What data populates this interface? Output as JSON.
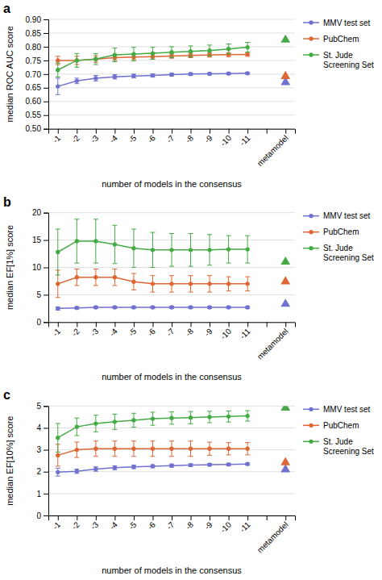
{
  "chart_data": [
    {
      "type": "line",
      "title": "a",
      "x_label": "number of models in the consensus",
      "y_label": "median ROC AUC score",
      "categories": [
        "-1",
        "-2",
        "-3",
        "-4",
        "-5",
        "-6",
        "-7",
        "-8",
        "-9",
        "-10",
        "-11",
        null,
        "metamodel"
      ],
      "ylim": [
        0.5,
        0.9
      ],
      "yticks": [
        {
          "value": 0.5,
          "label": "0.50"
        },
        {
          "value": 0.55,
          "label": "0.55"
        },
        {
          "value": 0.6,
          "label": "0.60"
        },
        {
          "value": 0.65,
          "label": "0.65"
        },
        {
          "value": 0.7,
          "label": "0.70"
        },
        {
          "value": 0.75,
          "label": "0.75"
        },
        {
          "value": 0.8,
          "label": "0.80"
        },
        {
          "value": 0.85,
          "label": "0.85"
        },
        {
          "value": 0.9,
          "label": "0.90"
        }
      ],
      "grid": true,
      "legend": "right",
      "series": [
        {
          "name": "MMV test set",
          "type": "line",
          "marker": "circle",
          "color": "#7070d0",
          "values": [
            0.655,
            0.675,
            0.685,
            0.69,
            0.693,
            0.695,
            0.698,
            0.7,
            0.701,
            0.702,
            0.703,
            null,
            null
          ],
          "errors": [
            0.03,
            0.01,
            0.01,
            0.008,
            0.007,
            0.006,
            0.005,
            0.005,
            0.004,
            0.004,
            0.004,
            null,
            null
          ]
        },
        {
          "name": "PubChem",
          "type": "line",
          "marker": "circle",
          "color": "#dd6633",
          "values": [
            0.75,
            0.75,
            0.755,
            0.76,
            0.762,
            0.764,
            0.766,
            0.768,
            0.77,
            0.771,
            0.772,
            null,
            null
          ],
          "errors": [
            0.015,
            0.015,
            0.012,
            0.01,
            0.009,
            0.009,
            0.008,
            0.008,
            0.008,
            0.007,
            0.007,
            null,
            null
          ]
        },
        {
          "name": "St. Jude\nScreening Set",
          "type": "line",
          "marker": "circle",
          "color": "#44aa44",
          "values": [
            0.715,
            0.75,
            0.755,
            0.77,
            0.773,
            0.776,
            0.78,
            0.783,
            0.786,
            0.792,
            0.798,
            null,
            null
          ],
          "errors": [
            0.025,
            0.025,
            0.02,
            0.025,
            0.025,
            0.022,
            0.02,
            0.02,
            0.02,
            0.018,
            0.018,
            null,
            null
          ]
        },
        {
          "type": "scatter",
          "marker": "triangle",
          "color": "#7070d0",
          "values": [
            null,
            null,
            null,
            null,
            null,
            null,
            null,
            null,
            null,
            null,
            null,
            null,
            0.67
          ]
        },
        {
          "type": "scatter",
          "marker": "triangle",
          "color": "#dd6633",
          "values": [
            null,
            null,
            null,
            null,
            null,
            null,
            null,
            null,
            null,
            null,
            null,
            null,
            0.692
          ]
        },
        {
          "type": "scatter",
          "marker": "triangle",
          "color": "#44aa44",
          "values": [
            null,
            null,
            null,
            null,
            null,
            null,
            null,
            null,
            null,
            null,
            null,
            null,
            0.825
          ]
        }
      ]
    },
    {
      "type": "line",
      "title": "b",
      "x_label": "number of models in the consensus",
      "y_label": "median EF[1%] score",
      "categories": [
        "-1",
        "-2",
        "-3",
        "-4",
        "-5",
        "-6",
        "-7",
        "-8",
        "-9",
        "-10",
        "-11",
        null,
        "metamodel"
      ],
      "ylim": [
        0,
        20
      ],
      "yticks": [
        0,
        5,
        10,
        15,
        20
      ],
      "grid": true,
      "legend": "right",
      "series": [
        {
          "name": "MMV test set",
          "type": "line",
          "marker": "circle",
          "color": "#7070d0",
          "values": [
            2.5,
            2.6,
            2.7,
            2.7,
            2.7,
            2.7,
            2.7,
            2.7,
            2.7,
            2.7,
            2.7,
            null,
            null
          ],
          "errors": [
            0.3,
            0.2,
            0.2,
            0.2,
            0.2,
            0.2,
            0.2,
            0.2,
            0.2,
            0.2,
            0.2,
            null,
            null
          ]
        },
        {
          "name": "PubChem",
          "type": "line",
          "marker": "circle",
          "color": "#dd6633",
          "values": [
            7.0,
            8.2,
            8.2,
            8.2,
            7.4,
            7.0,
            7.0,
            7.0,
            7.0,
            7.0,
            7.0,
            null,
            null
          ],
          "errors": [
            2.5,
            1.5,
            1.5,
            1.5,
            1.5,
            1.5,
            1.5,
            1.5,
            1.5,
            1.3,
            1.3,
            null,
            null
          ]
        },
        {
          "name": "St. Jude\nScreening Set",
          "type": "line",
          "marker": "circle",
          "color": "#44aa44",
          "values": [
            12.8,
            14.8,
            14.8,
            14.2,
            13.5,
            13.2,
            13.2,
            13.2,
            13.2,
            13.3,
            13.3,
            null,
            null
          ],
          "errors": [
            4.2,
            4.0,
            4.0,
            3.5,
            3.5,
            3.2,
            3.0,
            3.0,
            2.8,
            2.5,
            2.5,
            null,
            null
          ]
        },
        {
          "type": "scatter",
          "marker": "triangle",
          "color": "#7070d0",
          "values": [
            null,
            null,
            null,
            null,
            null,
            null,
            null,
            null,
            null,
            null,
            null,
            null,
            3.3
          ]
        },
        {
          "type": "scatter",
          "marker": "triangle",
          "color": "#dd6633",
          "values": [
            null,
            null,
            null,
            null,
            null,
            null,
            null,
            null,
            null,
            null,
            null,
            null,
            7.4
          ]
        },
        {
          "type": "scatter",
          "marker": "triangle",
          "color": "#44aa44",
          "values": [
            null,
            null,
            null,
            null,
            null,
            null,
            null,
            null,
            null,
            null,
            null,
            null,
            11.0
          ]
        }
      ]
    },
    {
      "type": "line",
      "title": "c",
      "x_label": "number of models in the consensus",
      "y_label": "median EF[10%] score",
      "categories": [
        "-1",
        "-2",
        "-3",
        "-4",
        "-5",
        "-6",
        "-7",
        "-8",
        "-9",
        "-10",
        "-11",
        null,
        "metamodel"
      ],
      "ylim": [
        0,
        5
      ],
      "yticks": [
        0,
        1,
        2,
        3,
        4,
        5
      ],
      "grid": true,
      "legend": "right",
      "series": [
        {
          "name": "MMV test set",
          "type": "line",
          "marker": "circle",
          "color": "#7070d0",
          "values": [
            1.98,
            2.02,
            2.12,
            2.18,
            2.22,
            2.25,
            2.28,
            2.3,
            2.32,
            2.33,
            2.35,
            null,
            null
          ],
          "errors": [
            0.18,
            0.1,
            0.1,
            0.09,
            0.08,
            0.07,
            0.07,
            0.06,
            0.06,
            0.06,
            0.05,
            null,
            null
          ]
        },
        {
          "name": "PubChem",
          "type": "line",
          "marker": "circle",
          "color": "#dd6633",
          "values": [
            2.75,
            3.0,
            3.05,
            3.05,
            3.05,
            3.05,
            3.05,
            3.05,
            3.05,
            3.05,
            3.05,
            null,
            null
          ],
          "errors": [
            0.5,
            0.35,
            0.35,
            0.35,
            0.35,
            0.35,
            0.35,
            0.35,
            0.3,
            0.28,
            0.28,
            null,
            null
          ]
        },
        {
          "name": "St. Jude\nScreening Set",
          "type": "line",
          "marker": "circle",
          "color": "#44aa44",
          "values": [
            3.55,
            4.05,
            4.2,
            4.28,
            4.35,
            4.42,
            4.45,
            4.47,
            4.5,
            4.52,
            4.55,
            null,
            null
          ],
          "errors": [
            0.65,
            0.4,
            0.38,
            0.35,
            0.32,
            0.3,
            0.28,
            0.28,
            0.26,
            0.25,
            0.24,
            null,
            null
          ]
        },
        {
          "type": "scatter",
          "marker": "triangle",
          "color": "#7070d0",
          "values": [
            null,
            null,
            null,
            null,
            null,
            null,
            null,
            null,
            null,
            null,
            null,
            null,
            2.1
          ]
        },
        {
          "type": "scatter",
          "marker": "triangle",
          "color": "#dd6633",
          "values": [
            null,
            null,
            null,
            null,
            null,
            null,
            null,
            null,
            null,
            null,
            null,
            null,
            2.42
          ]
        },
        {
          "type": "scatter",
          "marker": "triangle",
          "color": "#44aa44",
          "values": [
            null,
            null,
            null,
            null,
            null,
            null,
            null,
            null,
            null,
            null,
            null,
            null,
            4.92
          ]
        }
      ]
    }
  ]
}
